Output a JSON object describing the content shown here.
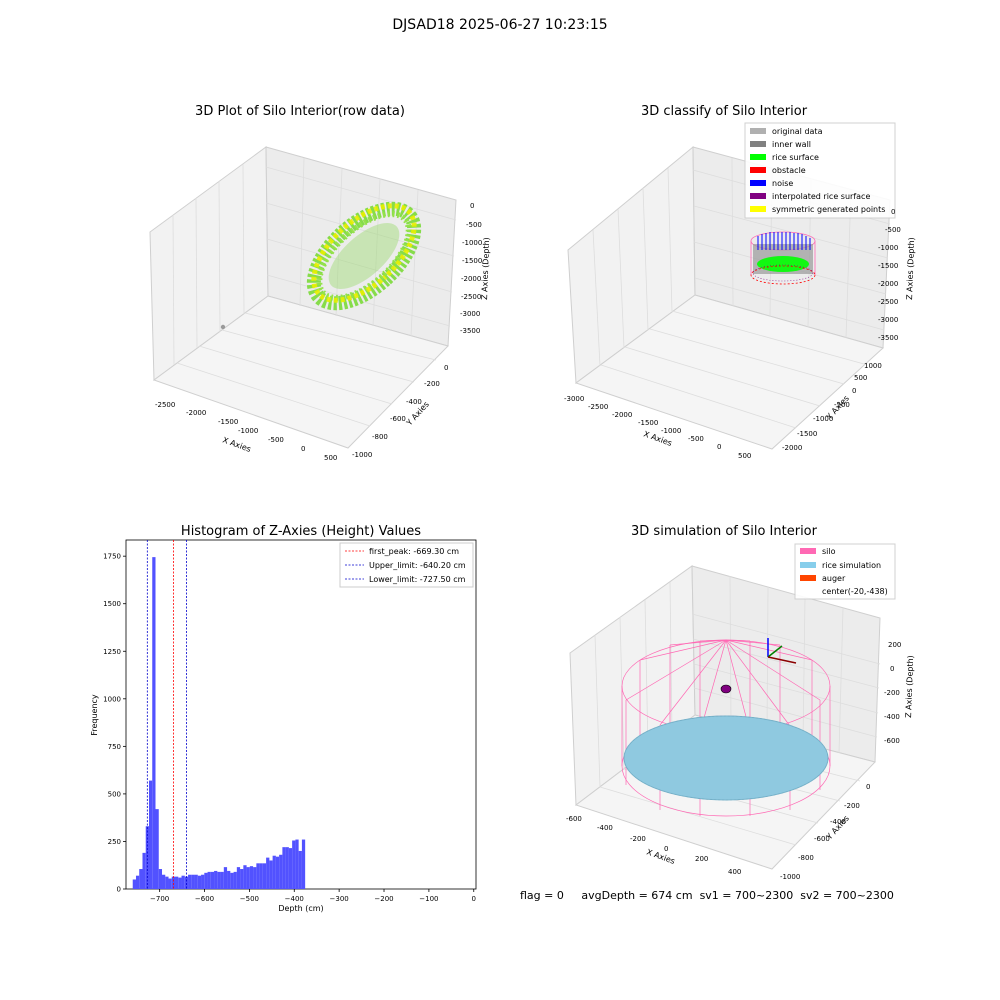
{
  "suptitle": "DJSAD18 2025-06-27 10:23:15",
  "footer": {
    "flag": "flag = 0",
    "avg_depth": "avgDepth = 674 cm",
    "sv1": "sv1 = 700~2300",
    "sv2": "sv2 = 700~2300"
  },
  "chart_data": [
    {
      "type": "scatter",
      "title": "3D Plot of Silo Interior(row data)",
      "xlabel": "X Axies",
      "ylabel": "Y Axies",
      "zlabel": "Z Axies (Depth)",
      "x_ticks": [
        "-2500",
        "-2000",
        "-1500",
        "-1000",
        "-500",
        "0",
        "500"
      ],
      "y_ticks": [
        "-1000",
        "-800",
        "-600",
        "-400",
        "-200",
        "0"
      ],
      "z_ticks": [
        "0",
        "-500",
        "-1000",
        "-1500",
        "-2000",
        "-2500",
        "-3000",
        "-3500"
      ],
      "colors": {
        "cloud_low": "#7ee04a",
        "cloud_high": "#f0f000",
        "outlier": "#9a9a9a"
      }
    },
    {
      "type": "scatter",
      "title": "3D classify of Silo Interior",
      "xlabel": "X Axies",
      "ylabel": "Y Axies",
      "zlabel": "Z Axies (Depth)",
      "x_ticks": [
        "-3000",
        "-2500",
        "-2000",
        "-1500",
        "-1000",
        "-500",
        "0",
        "500"
      ],
      "y_ticks": [
        "-2000",
        "-1500",
        "-1000",
        "-500",
        "0",
        "500",
        "1000"
      ],
      "z_ticks": [
        "0",
        "-500",
        "-1000",
        "-1500",
        "-2000",
        "-2500",
        "-3000",
        "-3500"
      ],
      "legend": [
        {
          "label": "original data",
          "color": "#b0b0b0"
        },
        {
          "label": "inner wall",
          "color": "#808080"
        },
        {
          "label": "rice surface",
          "color": "#00ff00"
        },
        {
          "label": "obstacle",
          "color": "#ff0000"
        },
        {
          "label": "noise",
          "color": "#0000ff"
        },
        {
          "label": "interpolated rice surface",
          "color": "#800080"
        },
        {
          "label": "symmetric generated points",
          "color": "#ffff00"
        }
      ],
      "legend_position": "top-right"
    },
    {
      "type": "histogram",
      "title": "Histogram of Z-Axies (Height) Values",
      "xlabel": "Depth (cm)",
      "ylabel": "Frequency",
      "xlim": [
        -775,
        5
      ],
      "ylim": [
        0,
        1835
      ],
      "x_ticks": [
        -700,
        -600,
        -500,
        -400,
        -300,
        -200,
        -100,
        0
      ],
      "y_ticks": [
        0,
        250,
        500,
        750,
        1000,
        1250,
        1500,
        1750
      ],
      "bin_start": -760,
      "bin_width": 7.25,
      "counts": [
        50,
        70,
        105,
        190,
        330,
        570,
        1745,
        420,
        105,
        75,
        65,
        55,
        65,
        65,
        60,
        70,
        65,
        75,
        75,
        75,
        70,
        75,
        85,
        90,
        90,
        95,
        90,
        90,
        115,
        95,
        85,
        90,
        115,
        105,
        125,
        115,
        120,
        115,
        135,
        135,
        135,
        165,
        150,
        175,
        170,
        180,
        220,
        220,
        215,
        255,
        260,
        200,
        260
      ],
      "bar_color": "#5252ff",
      "vlines": [
        {
          "label": "first_peak: -669.30 cm",
          "x": -669.3,
          "color": "#ff0000"
        },
        {
          "label": "Upper_limit: -640.20 cm",
          "x": -640.2,
          "color": "#0000cc"
        },
        {
          "label": "Lower_limit: -727.50 cm",
          "x": -727.5,
          "color": "#0000cc"
        }
      ],
      "legend_position": "top-right"
    },
    {
      "type": "surface",
      "title": "3D simulation of Silo Interior",
      "xlabel": "X Axies",
      "ylabel": "Y Axies",
      "zlabel": "Z Axies (Depth)",
      "x_ticks": [
        "-600",
        "-400",
        "-200",
        "0",
        "200",
        "400"
      ],
      "y_ticks": [
        "-1000",
        "-800",
        "-600",
        "-400",
        "-200",
        "0"
      ],
      "z_ticks": [
        "200",
        "0",
        "-200",
        "-400",
        "-600"
      ],
      "legend": [
        {
          "label": "silo",
          "color": "#ff69b4"
        },
        {
          "label": "rice simulation",
          "color": "#87ceeb"
        },
        {
          "label": "auger",
          "color": "#ff4500"
        },
        {
          "label": "center(-20,-438)",
          "color": "none"
        }
      ],
      "legend_position": "top-right"
    }
  ]
}
